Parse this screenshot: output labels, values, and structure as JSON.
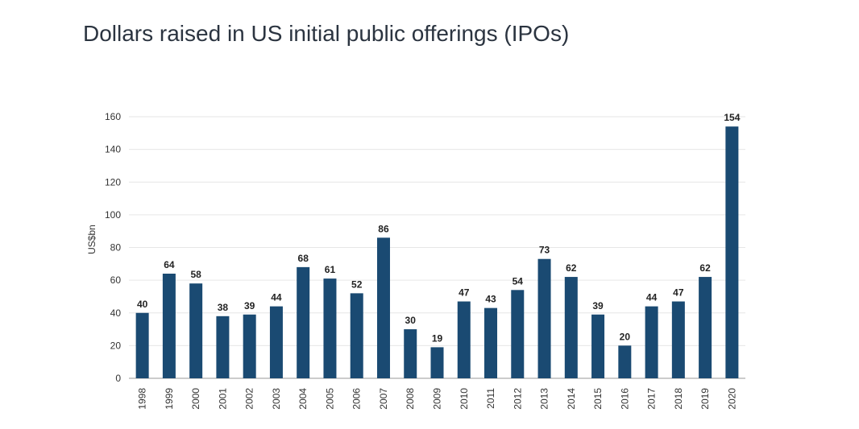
{
  "chart_data": {
    "type": "bar",
    "title": "Dollars raised in US initial public offerings (IPOs)",
    "xlabel": "",
    "ylabel": "US$bn",
    "ylim": [
      0,
      160
    ],
    "yticks": [
      0,
      20,
      40,
      60,
      80,
      100,
      120,
      140,
      160
    ],
    "grid": true,
    "legend": "none",
    "bar_color": "#1a4a72",
    "categories": [
      "1998",
      "1999",
      "2000",
      "2001",
      "2002",
      "2003",
      "2004",
      "2005",
      "2006",
      "2007",
      "2008",
      "2009",
      "2010",
      "2011",
      "2012",
      "2013",
      "2014",
      "2015",
      "2016",
      "2017",
      "2018",
      "2019",
      "2020"
    ],
    "values": [
      40,
      64,
      58,
      38,
      39,
      44,
      68,
      61,
      52,
      86,
      30,
      19,
      47,
      43,
      54,
      73,
      62,
      39,
      20,
      44,
      47,
      62,
      154
    ]
  }
}
